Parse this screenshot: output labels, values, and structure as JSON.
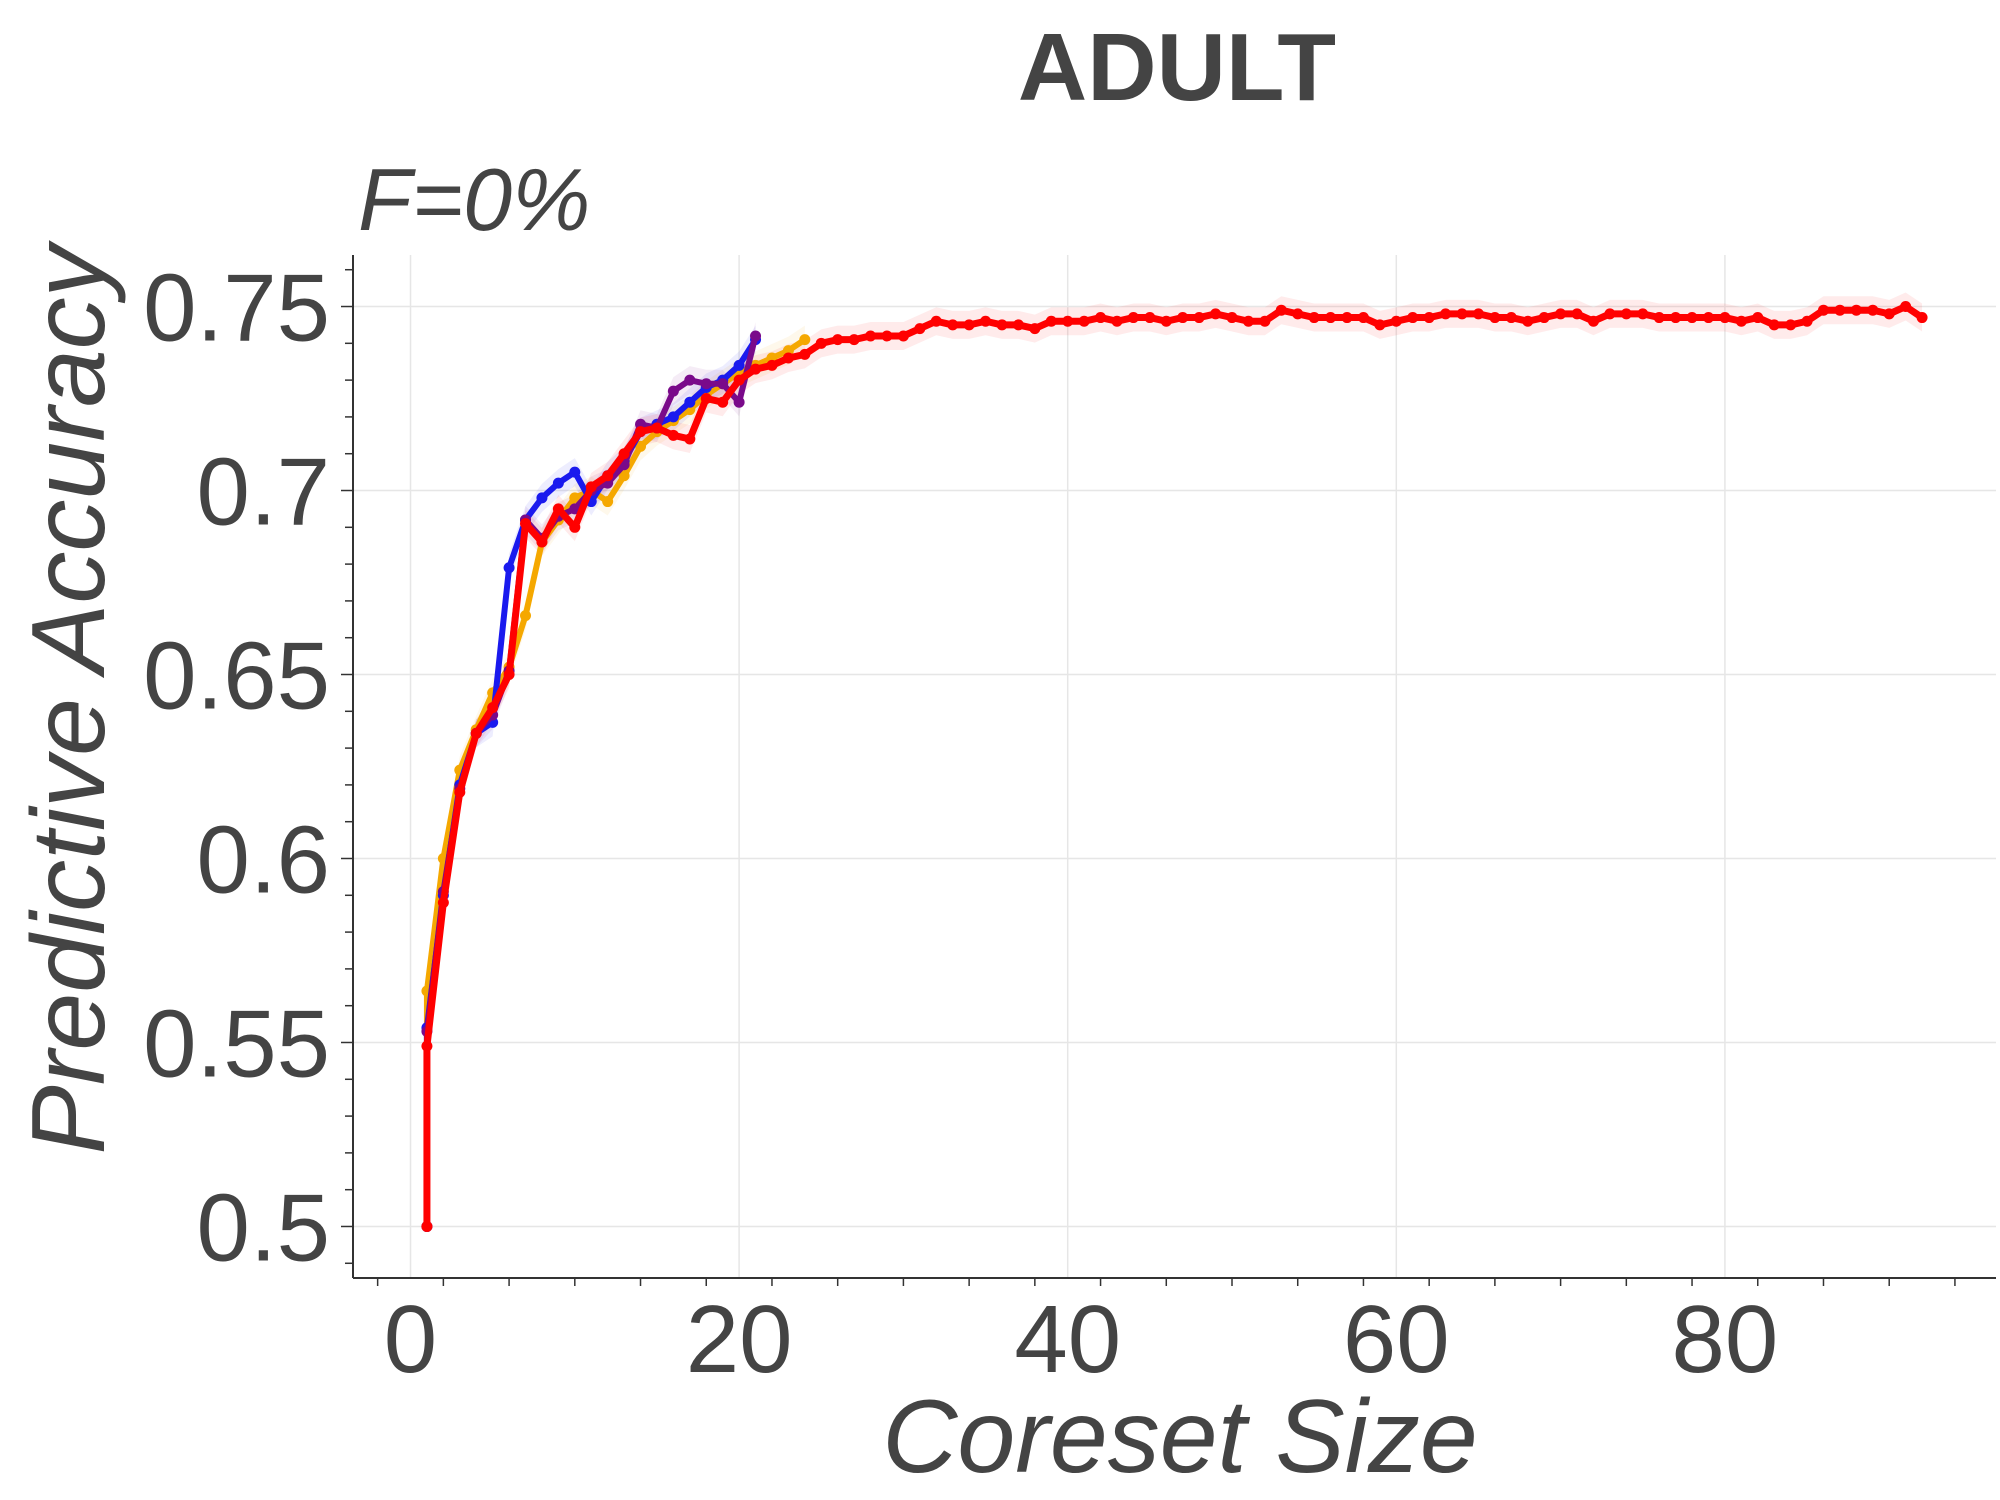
{
  "chart_data": {
    "type": "line",
    "title": "ADULT",
    "subtitle": "F=0%",
    "xlabel": "Coreset Size",
    "ylabel": "Predictive Accuracy",
    "xlim": [
      -3.5,
      96.5
    ],
    "ylim": [
      0.486,
      0.764
    ],
    "xticks": [
      "0",
      "20",
      "40",
      "60",
      "80"
    ],
    "xtick_values": [
      0,
      20,
      40,
      60,
      80
    ],
    "yticks": [
      "0.5",
      "0.55",
      "0.6",
      "0.65",
      "0.7",
      "0.75"
    ],
    "ytick_values": [
      0.5,
      0.55,
      0.6,
      0.65,
      0.7,
      0.75
    ],
    "grid": true,
    "colors": {
      "text": "#444444",
      "grid": "#e6e6e6",
      "axis": "#333333"
    },
    "series": [
      {
        "color": "#f5a800",
        "x": [
          1,
          1,
          2,
          3,
          4,
          5,
          6,
          7,
          8,
          9,
          10,
          11,
          12,
          13,
          14,
          15,
          16,
          17,
          18,
          19,
          20,
          21,
          22,
          23,
          24
        ],
        "y": [
          0.5,
          0.564,
          0.6,
          0.624,
          0.635,
          0.645,
          0.652,
          0.666,
          0.686,
          0.692,
          0.698,
          0.7,
          0.697,
          0.704,
          0.712,
          0.716,
          0.719,
          0.722,
          0.726,
          0.729,
          0.732,
          0.734,
          0.736,
          0.738,
          0.741
        ]
      },
      {
        "color": "#1a1aee",
        "x": [
          1,
          1,
          2,
          3,
          4,
          5,
          6,
          7,
          8,
          9,
          10,
          11,
          12,
          13,
          14,
          15,
          16,
          17,
          18,
          19,
          20,
          21
        ],
        "y": [
          0.5,
          0.554,
          0.59,
          0.62,
          0.634,
          0.637,
          0.679,
          0.692,
          0.698,
          0.702,
          0.705,
          0.697,
          0.704,
          0.708,
          0.716,
          0.718,
          0.72,
          0.724,
          0.728,
          0.73,
          0.734,
          0.741
        ]
      },
      {
        "color": "#7a0a8a",
        "x": [
          1,
          1,
          2,
          3,
          4,
          5,
          6,
          7,
          8,
          9,
          10,
          11,
          12,
          13,
          14,
          15,
          16,
          17,
          18,
          19,
          20,
          21
        ],
        "y": [
          0.5,
          0.553,
          0.591,
          0.619,
          0.634,
          0.639,
          0.651,
          0.692,
          0.687,
          0.693,
          0.695,
          0.7,
          0.702,
          0.707,
          0.718,
          0.717,
          0.727,
          0.73,
          0.729,
          0.729,
          0.724,
          0.742
        ]
      },
      {
        "color": "#ff0000",
        "x": [
          1,
          1,
          2,
          3,
          4,
          5,
          6,
          7,
          8,
          9,
          10,
          11,
          12,
          13,
          14,
          15,
          16,
          17,
          18,
          19,
          20,
          21,
          22,
          23,
          24,
          25,
          26,
          27,
          28,
          29,
          30,
          31,
          32,
          33,
          34,
          35,
          36,
          37,
          38,
          39,
          40,
          41,
          42,
          43,
          44,
          45,
          46,
          47,
          48,
          49,
          50,
          51,
          52,
          53,
          54,
          55,
          56,
          57,
          58,
          59,
          60,
          61,
          62,
          63,
          64,
          65,
          66,
          67,
          68,
          69,
          70,
          71,
          72,
          73,
          74,
          75,
          76,
          77,
          78,
          79,
          80,
          81,
          82,
          83,
          84,
          85,
          86,
          87,
          88,
          89,
          90,
          91,
          92
        ],
        "y": [
          0.5,
          0.549,
          0.588,
          0.618,
          0.634,
          0.641,
          0.65,
          0.691,
          0.686,
          0.695,
          0.69,
          0.701,
          0.704,
          0.71,
          0.716,
          0.717,
          0.715,
          0.714,
          0.725,
          0.724,
          0.73,
          0.733,
          0.734,
          0.736,
          0.737,
          0.74,
          0.741,
          0.741,
          0.742,
          0.742,
          0.742,
          0.744,
          0.746,
          0.745,
          0.745,
          0.746,
          0.745,
          0.745,
          0.744,
          0.746,
          0.746,
          0.746,
          0.747,
          0.746,
          0.747,
          0.747,
          0.746,
          0.747,
          0.747,
          0.748,
          0.747,
          0.746,
          0.746,
          0.749,
          0.748,
          0.747,
          0.747,
          0.747,
          0.747,
          0.745,
          0.746,
          0.747,
          0.747,
          0.748,
          0.748,
          0.748,
          0.747,
          0.747,
          0.746,
          0.747,
          0.748,
          0.748,
          0.746,
          0.748,
          0.748,
          0.748,
          0.747,
          0.747,
          0.747,
          0.747,
          0.747,
          0.746,
          0.747,
          0.745,
          0.745,
          0.746,
          0.749,
          0.749,
          0.749,
          0.749,
          0.748,
          0.75,
          0.747
        ]
      }
    ]
  }
}
